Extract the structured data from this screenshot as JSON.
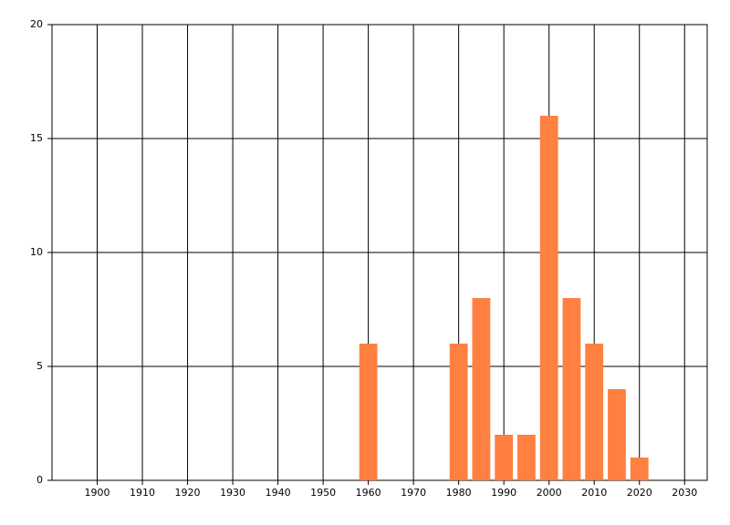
{
  "chart_data": {
    "type": "bar",
    "x": [
      1960,
      1980,
      1985,
      1990,
      1995,
      2000,
      2005,
      2010,
      2015,
      2020
    ],
    "values": [
      6,
      6,
      8,
      2,
      2,
      16,
      8,
      6,
      4,
      1
    ],
    "color": "#ff8040",
    "xlim": [
      1890,
      2035
    ],
    "xticks": [
      1900,
      1910,
      1920,
      1930,
      1940,
      1950,
      1960,
      1970,
      1980,
      1990,
      2000,
      2010,
      2020,
      2030
    ],
    "ylim": [
      0,
      20
    ],
    "yticks": [
      0,
      5,
      10,
      15,
      20
    ],
    "grid": true
  }
}
